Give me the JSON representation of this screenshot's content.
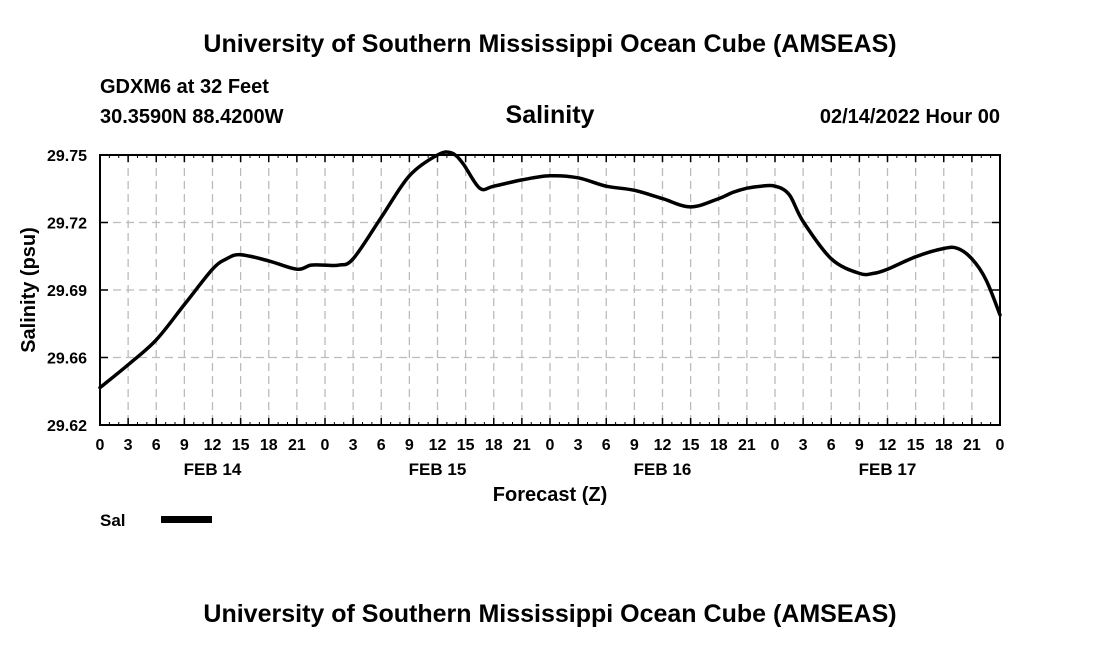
{
  "header": {
    "title": "University of Southern Mississippi Ocean Cube (AMSEAS)",
    "station": "GDXM6 at 32 Feet",
    "coords": "30.3590N  88.4200W",
    "variable_title": "Salinity",
    "date": "02/14/2022 Hour 00"
  },
  "footer": {
    "title": "University of Southern Mississippi Ocean Cube (AMSEAS)"
  },
  "colors": {
    "line": "#000000",
    "grid": "#bbbbbb",
    "background": "#ffffff"
  },
  "chart_data": {
    "type": "line",
    "title": "Salinity",
    "xlabel": "Forecast (Z)",
    "ylabel": "Salinity (psu)",
    "x_unit": "forecast hour",
    "xlim": [
      0,
      96
    ],
    "ylim": [
      29.62,
      29.75
    ],
    "yticks": [
      "29.62",
      "29.66",
      "29.69",
      "29.72",
      "29.75"
    ],
    "xtick_labels": [
      "0",
      "3",
      "6",
      "9",
      "12",
      "15",
      "18",
      "21",
      "0",
      "3",
      "6",
      "9",
      "12",
      "15",
      "18",
      "21",
      "0",
      "3",
      "6",
      "9",
      "12",
      "15",
      "18",
      "21",
      "0",
      "3",
      "6",
      "9",
      "12",
      "15",
      "18",
      "21",
      "0"
    ],
    "day_labels": [
      {
        "label": "FEB 14",
        "hour": 12
      },
      {
        "label": "FEB 15",
        "hour": 36
      },
      {
        "label": "FEB 16",
        "hour": 60
      },
      {
        "label": "FEB 17",
        "hour": 84
      }
    ],
    "grid": true,
    "legend": [
      {
        "name": "Sal",
        "position": "bottom-left"
      }
    ],
    "series": [
      {
        "name": "Sal",
        "x": [
          0,
          3,
          6,
          9,
          12,
          13.5,
          15,
          18,
          21,
          22.5,
          24,
          25.5,
          27,
          30,
          33,
          36,
          37.5,
          38.7,
          40.5,
          42,
          45,
          48,
          51,
          54,
          57,
          60,
          63,
          66,
          67.5,
          69,
          70.5,
          72,
          73.5,
          75,
          78,
          81,
          82.5,
          84,
          87,
          90,
          91.5,
          93,
          94.5,
          96
        ],
        "y": [
          29.638,
          29.649,
          29.661,
          29.678,
          29.695,
          29.7,
          29.702,
          29.699,
          29.695,
          29.697,
          29.697,
          29.697,
          29.7,
          29.72,
          29.74,
          29.75,
          29.751,
          29.746,
          29.734,
          29.735,
          29.738,
          29.74,
          29.739,
          29.735,
          29.733,
          29.729,
          29.725,
          29.729,
          29.732,
          29.734,
          29.735,
          29.735,
          29.731,
          29.718,
          29.7,
          29.693,
          29.693,
          29.695,
          29.701,
          29.705,
          29.705,
          29.7,
          29.69,
          29.673
        ]
      }
    ]
  }
}
